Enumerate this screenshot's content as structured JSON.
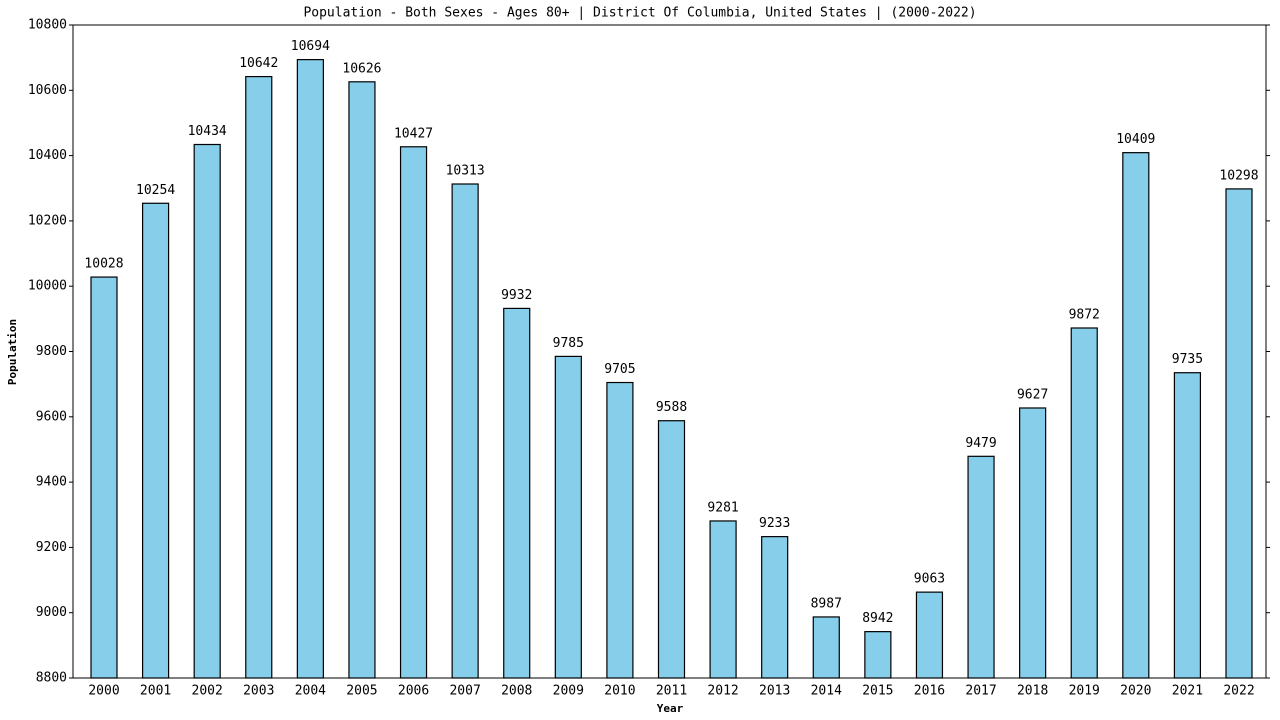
{
  "chart_data": {
    "type": "bar",
    "title": "Population - Both Sexes - Ages 80+ | District Of Columbia, United States |  (2000-2022)",
    "x_label": "Year",
    "y_label": "Population",
    "categories": [
      "2000",
      "2001",
      "2002",
      "2003",
      "2004",
      "2005",
      "2006",
      "2007",
      "2008",
      "2009",
      "2010",
      "2011",
      "2012",
      "2013",
      "2014",
      "2015",
      "2016",
      "2017",
      "2018",
      "2019",
      "2020",
      "2021",
      "2022"
    ],
    "values": [
      10028,
      10254,
      10434,
      10642,
      10694,
      10626,
      10427,
      10313,
      9932,
      9785,
      9705,
      9588,
      9281,
      9233,
      8987,
      8942,
      9063,
      9479,
      9627,
      9872,
      10409,
      9735,
      10298
    ],
    "color": "#87ceeb",
    "ylim": [
      8800,
      10800
    ],
    "yticks": [
      8800,
      9000,
      9200,
      9400,
      9600,
      9800,
      10000,
      10200,
      10400,
      10600,
      10800
    ]
  }
}
